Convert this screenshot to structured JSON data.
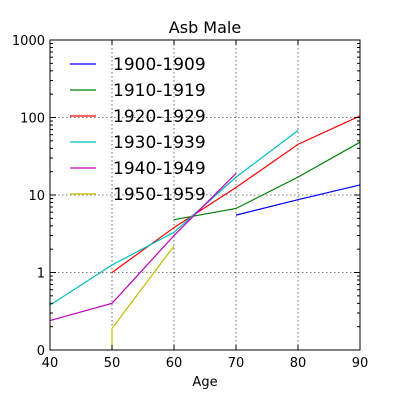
{
  "chart_data": {
    "type": "line",
    "title": "Asb Male",
    "xlabel": "Age",
    "ylabel": "",
    "xlim": [
      40,
      90
    ],
    "ylim": [
      0.1,
      1000
    ],
    "yscale": "log",
    "grid": true,
    "legend_position": "top-left",
    "x_ticks": [
      40,
      50,
      60,
      70,
      80,
      90
    ],
    "x_tick_labels": [
      "40",
      "50",
      "60",
      "70",
      "80",
      "90"
    ],
    "y_ticks": [
      0.1,
      1,
      10,
      100,
      1000
    ],
    "y_tick_labels": [
      "0",
      "1",
      "10",
      "100",
      "1000"
    ],
    "series": [
      {
        "name": "1900-1909",
        "color": "#0000ff",
        "x": [
          70,
          80,
          90
        ],
        "y": [
          5.5,
          8.7,
          13.5
        ]
      },
      {
        "name": "1910-1919",
        "color": "#008000",
        "x": [
          60,
          70,
          80,
          90
        ],
        "y": [
          4.8,
          6.7,
          17,
          48
        ]
      },
      {
        "name": "1920-1929",
        "color": "#ff0000",
        "x": [
          50,
          60,
          70,
          80,
          90
        ],
        "y": [
          1.0,
          3.8,
          12.5,
          45,
          105
        ]
      },
      {
        "name": "1930-1939",
        "color": "#00bfbf",
        "x": [
          40,
          50,
          60,
          70,
          80
        ],
        "y": [
          0.38,
          1.25,
          3.3,
          17,
          68
        ]
      },
      {
        "name": "1940-1949",
        "color": "#bf00bf",
        "x": [
          40,
          50,
          60,
          70
        ],
        "y": [
          0.24,
          0.4,
          3.0,
          19
        ]
      },
      {
        "name": "1950-1959",
        "color": "#bfbf00",
        "x": [
          50,
          50,
          60
        ],
        "y": [
          0.1,
          0.19,
          2.2
        ]
      }
    ]
  }
}
